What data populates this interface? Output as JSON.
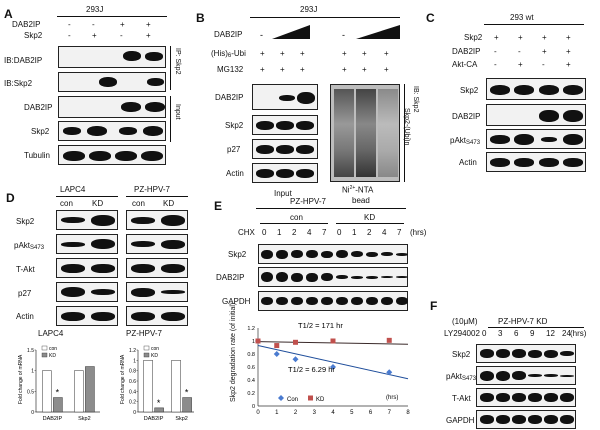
{
  "panels": {
    "A": {
      "label": "A",
      "cell_line": "293J",
      "conditions": [
        {
          "name": "DAB2IP",
          "values": [
            "-",
            "-",
            "+",
            "+"
          ]
        },
        {
          "name": "Skp2",
          "values": [
            "-",
            "+",
            "-",
            "+"
          ]
        }
      ],
      "blots": [
        "IB:DAB2IP",
        "IB:Skp2",
        "DAB2IP",
        "Skp2",
        "Tubulin"
      ],
      "group_ip": "IP: Skp2",
      "group_input": "Input"
    },
    "B": {
      "label": "B",
      "cell_line": "293J",
      "conditions": [
        {
          "name": "DAB2IP",
          "values": [
            "-",
            "",
            "",
            "-",
            "",
            ""
          ]
        },
        {
          "name": "(His)6-Ubi",
          "values": [
            "+",
            "+",
            "+",
            "+",
            "+",
            "+"
          ]
        },
        {
          "name": "MG132",
          "values": [
            "+",
            "+",
            "+",
            "+",
            "+",
            "+"
          ]
        }
      ],
      "blots": [
        "DAB2IP",
        "Skp2",
        "p27",
        "Actin"
      ],
      "input_label": "Input",
      "bead_label_1": "Ni",
      "bead_label_sup": "2+",
      "bead_label_2": "-NTA",
      "bead_label_3": "bead",
      "ib_label": "IB: Skp2",
      "ubi_label": "Skp2-(Ubi)n"
    },
    "C": {
      "label": "C",
      "cell_line": "293 wt",
      "conditions": [
        {
          "name": "Skp2",
          "values": [
            "+",
            "+",
            "+",
            "+"
          ]
        },
        {
          "name": "DAB2IP",
          "values": [
            "-",
            "-",
            "+",
            "+"
          ]
        },
        {
          "name": "Akt-CA",
          "values": [
            "-",
            "+",
            "-",
            "+"
          ]
        }
      ],
      "blots": [
        "Skp2",
        "DAB2IP",
        "pAkt",
        "Actin"
      ],
      "pakt_sub": "S473"
    },
    "D": {
      "label": "D",
      "col_groups": [
        "LAPC4",
        "PZ-HPV-7"
      ],
      "col_labels": [
        "con",
        "KD",
        "con",
        "KD"
      ],
      "blots": [
        "Skp2",
        "pAkt",
        "T-Akt",
        "p27",
        "Actin"
      ],
      "pakt_sub": "S473",
      "charts_title": [
        "LAPC4",
        "PZ-HPV-7"
      ],
      "ylabel": "Fold change of mRNA",
      "legend": [
        "con",
        "KD"
      ],
      "star": "*"
    },
    "E": {
      "label": "E",
      "cell_line": "PZ-HPV-7",
      "groups": [
        "con",
        "KD"
      ],
      "chx_label": "CHX",
      "timepoints": [
        "0",
        "1",
        "2",
        "4",
        "7",
        "0",
        "1",
        "2",
        "4",
        "7"
      ],
      "hrs_label": "(hrs)",
      "blots": [
        "Skp2",
        "DAB2IP",
        "GAPDH"
      ],
      "plot_ylabel": "Skp2 degradation rate (of initial)",
      "half_life_con": "T1/2 = 171 hr",
      "half_life_kd": "T1/2 = 6.29 hr",
      "legend": [
        "Con",
        "KD"
      ],
      "xunit": "(hrs)"
    },
    "F": {
      "label": "F",
      "treatment": "(10μM)",
      "drug": "LY294002",
      "cell_line": "PZ-HPV-7 KD",
      "timepoints": [
        "0",
        "3",
        "6",
        "9",
        "12",
        "24"
      ],
      "hrs_label": "(hrs)",
      "blots": [
        "Skp2",
        "pAkt",
        "T-Akt",
        "GAPDH"
      ],
      "pakt_sub": "S473"
    }
  },
  "colors": {
    "band": "#111111",
    "blot_bg": "#f2f2f2",
    "con_bar": "#ffffff",
    "kd_bar": "#8c8c8c",
    "con_point": "#4a7bd0",
    "kd_point": "#c0504d",
    "con_line": "#1f4e9b",
    "kd_line": "#3a2a2a"
  },
  "chart_data": [
    {
      "type": "bar",
      "title": "LAPC4",
      "ylabel": "Fold change of mRNA",
      "categories": [
        "DAB2IP",
        "Skp2"
      ],
      "series": [
        {
          "name": "con",
          "values": [
            1.0,
            1.0
          ]
        },
        {
          "name": "KD",
          "values": [
            0.35,
            1.1
          ]
        }
      ],
      "yticks": [
        0,
        0.5,
        1,
        1.5
      ],
      "ylim": [
        0,
        1.5
      ]
    },
    {
      "type": "bar",
      "title": "PZ-HPV-7",
      "ylabel": "Fold change of mRNA",
      "categories": [
        "DAB2IP",
        "Skp2"
      ],
      "series": [
        {
          "name": "con",
          "values": [
            1.0,
            1.0
          ]
        },
        {
          "name": "KD",
          "values": [
            0.08,
            0.28
          ]
        }
      ],
      "yticks": [
        0,
        0.2,
        0.4,
        0.6,
        0.8,
        1,
        1.2
      ],
      "ylim": [
        0,
        1.2
      ]
    },
    {
      "type": "scatter",
      "ylabel": "Skp2 degradation rate (of initial)",
      "x_ticks": [
        0,
        1,
        2,
        3,
        4,
        5,
        6,
        7,
        8
      ],
      "y_ticks": [
        0,
        0.2,
        0.4,
        0.6,
        0.8,
        1,
        1.2
      ],
      "ylim": [
        0,
        1.2
      ],
      "xlim": [
        0,
        8
      ],
      "series": [
        {
          "name": "Con",
          "x": [
            0,
            1,
            2,
            4,
            7
          ],
          "y": [
            1.0,
            0.8,
            0.72,
            0.6,
            0.52
          ]
        },
        {
          "name": "KD",
          "x": [
            0,
            1,
            2,
            4,
            7
          ],
          "y": [
            1.0,
            0.93,
            0.98,
            1.0,
            1.01
          ]
        }
      ],
      "fit_lines": [
        {
          "name": "Con",
          "x": [
            0,
            8
          ],
          "y": [
            0.93,
            0.42
          ]
        },
        {
          "name": "KD",
          "x": [
            0,
            8
          ],
          "y": [
            0.99,
            0.95
          ]
        }
      ]
    }
  ]
}
